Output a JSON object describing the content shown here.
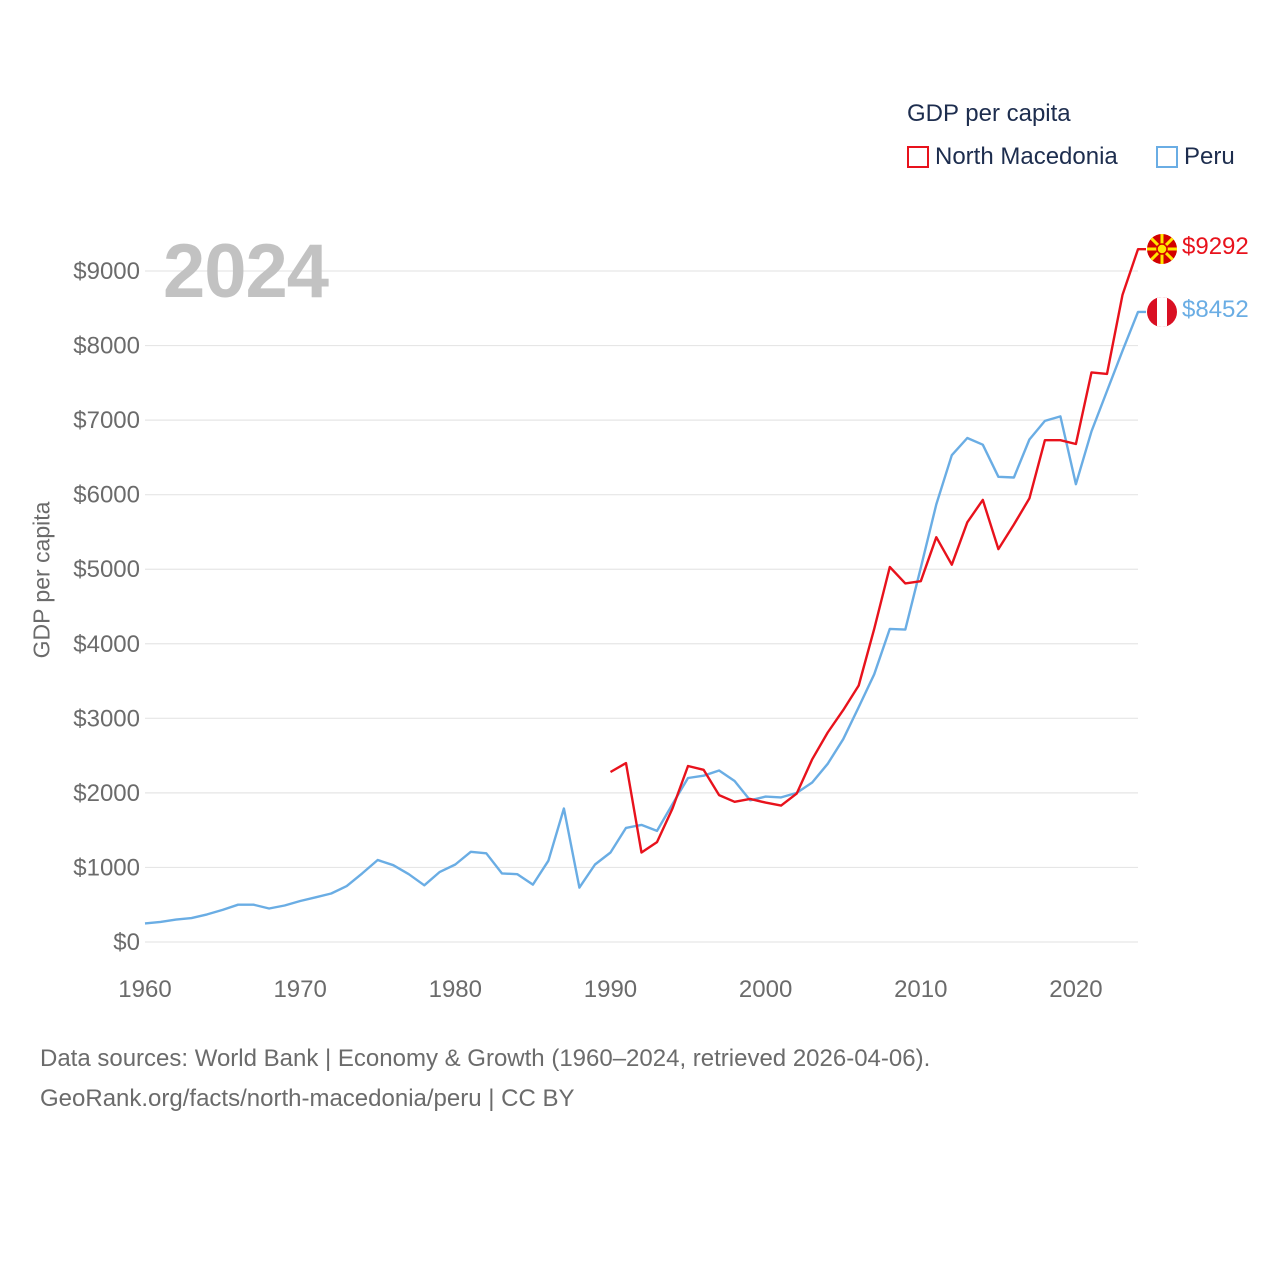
{
  "legend": {
    "title": "GDP per capita",
    "items": [
      "North Macedonia",
      "Peru"
    ]
  },
  "year_label": "2024",
  "colors": {
    "north_macedonia": "#e8121c",
    "peru": "#6aade4",
    "grid": "#e6e6e6",
    "axis_text": "#6b6b6b"
  },
  "end_labels": {
    "north_macedonia": "$9292",
    "peru": "$8452"
  },
  "flags": {
    "north_macedonia": "north-macedonia-flag-icon",
    "peru": "peru-flag-icon"
  },
  "source": {
    "line1": "Data sources: World Bank | Economy & Growth (1960–2024, retrieved 2026-04-06).",
    "line2": "GeoRank.org/facts/north-macedonia/peru | CC BY"
  },
  "chart_data": {
    "type": "line",
    "title": "GDP per capita",
    "xlabel": "",
    "ylabel": "GDP per capita",
    "xlim": [
      1960,
      2024
    ],
    "ylim": [
      0,
      9000
    ],
    "xticks": [
      1960,
      1970,
      1980,
      1990,
      2000,
      2010,
      2020
    ],
    "yticks": [
      0,
      1000,
      2000,
      3000,
      4000,
      5000,
      6000,
      7000,
      8000,
      9000
    ],
    "ytick_labels": [
      "$0",
      "$1000",
      "$2000",
      "$3000",
      "$4000",
      "$5000",
      "$6000",
      "$7000",
      "$8000",
      "$9000"
    ],
    "grid": true,
    "series": [
      {
        "name": "Peru",
        "x": [
          1960,
          1961,
          1962,
          1963,
          1964,
          1965,
          1966,
          1967,
          1968,
          1969,
          1970,
          1971,
          1972,
          1973,
          1974,
          1975,
          1976,
          1977,
          1978,
          1979,
          1980,
          1981,
          1982,
          1983,
          1984,
          1985,
          1986,
          1987,
          1988,
          1989,
          1990,
          1991,
          1992,
          1993,
          1994,
          1995,
          1996,
          1997,
          1998,
          1999,
          2000,
          2001,
          2002,
          2003,
          2004,
          2005,
          2006,
          2007,
          2008,
          2009,
          2010,
          2011,
          2012,
          2013,
          2014,
          2015,
          2016,
          2017,
          2018,
          2019,
          2020,
          2021,
          2022,
          2023,
          2024
        ],
        "values": [
          250,
          270,
          300,
          320,
          370,
          430,
          500,
          500,
          450,
          490,
          550,
          600,
          650,
          750,
          920,
          1100,
          1030,
          910,
          760,
          940,
          1040,
          1210,
          1190,
          920,
          910,
          770,
          1090,
          1790,
          730,
          1040,
          1200,
          1530,
          1570,
          1490,
          1850,
          2200,
          2230,
          2300,
          2160,
          1900,
          1950,
          1940,
          2000,
          2140,
          2390,
          2720,
          3150,
          3590,
          4200,
          4190,
          5020,
          5870,
          6530,
          6760,
          6670,
          6240,
          6230,
          6740,
          6990,
          7050,
          6140,
          6850,
          7390,
          7930,
          8452
        ]
      },
      {
        "name": "North Macedonia",
        "x": [
          1990,
          1991,
          1992,
          1993,
          1994,
          1995,
          1996,
          1997,
          1998,
          1999,
          2000,
          2001,
          2002,
          2003,
          2004,
          2005,
          2006,
          2007,
          2008,
          2009,
          2010,
          2011,
          2012,
          2013,
          2014,
          2015,
          2016,
          2017,
          2018,
          2019,
          2020,
          2021,
          2022,
          2023,
          2024
        ],
        "values": [
          2280,
          2400,
          1200,
          1340,
          1790,
          2360,
          2310,
          1970,
          1880,
          1920,
          1870,
          1830,
          1990,
          2450,
          2810,
          3110,
          3440,
          4200,
          5030,
          4810,
          4840,
          5430,
          5060,
          5630,
          5930,
          5270,
          5600,
          5950,
          6730,
          6730,
          6680,
          7640,
          7620,
          8680,
          9292
        ]
      }
    ],
    "end_values": {
      "North Macedonia": 9292,
      "Peru": 8452
    },
    "legend_position": "top-right"
  }
}
